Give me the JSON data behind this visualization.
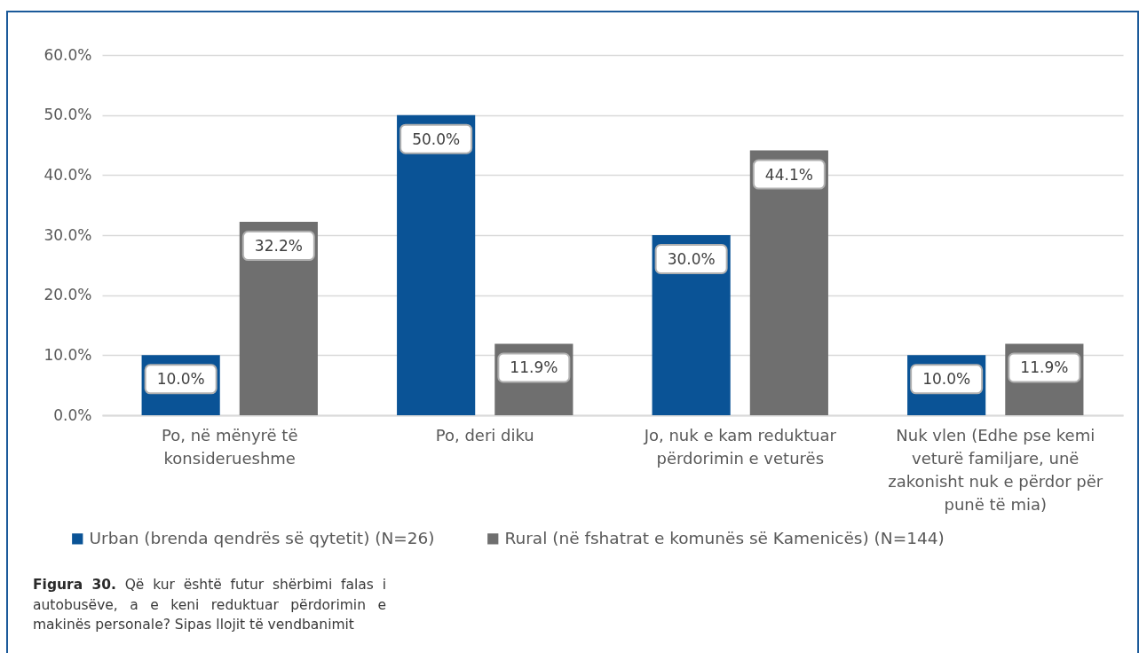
{
  "chart_data": {
    "type": "bar",
    "title": "Figura 30.",
    "subtitle": "Që kur është futur shërbimi falas i autobusëve, a e keni reduktuar përdorimin e makinës personale? Sipas llojit të vendbanimit",
    "categories": [
      "Po, në mënyrë të konsiderueshme",
      "Po, deri diku",
      "Jo, nuk e kam reduktuar përdorimin e veturës",
      "Nuk vlen (Edhe pse kemi veturë familjare, unë zakonisht nuk e përdor për punë të mia)"
    ],
    "series": [
      {
        "name": "Urban (brenda qendrës së qytetit) (N=26)",
        "color": "#0a5396",
        "values": [
          10.0,
          50.0,
          30.0,
          10.0
        ],
        "value_labels": [
          "10.0%",
          "50.0%",
          "30.0%",
          "10.0%"
        ]
      },
      {
        "name": "Rural (në fshatrat e komunës së Kamenicës) (N=144)",
        "color": "#6f6f6f",
        "values": [
          32.2,
          11.9,
          44.1,
          11.9
        ],
        "value_labels": [
          "32.2%",
          "11.9%",
          "44.1%",
          "11.9%"
        ]
      }
    ],
    "ylim": [
      0,
      60
    ],
    "yticks": [
      {
        "value": 0,
        "label": "0.0%"
      },
      {
        "value": 10,
        "label": "10.0%"
      },
      {
        "value": 20,
        "label": "20.0%"
      },
      {
        "value": 30,
        "label": "30.0%"
      },
      {
        "value": 40,
        "label": "40.0%"
      },
      {
        "value": 50,
        "label": "50.0%"
      },
      {
        "value": 60,
        "label": "60.0%"
      }
    ],
    "grid": true,
    "legend": "bottom"
  }
}
